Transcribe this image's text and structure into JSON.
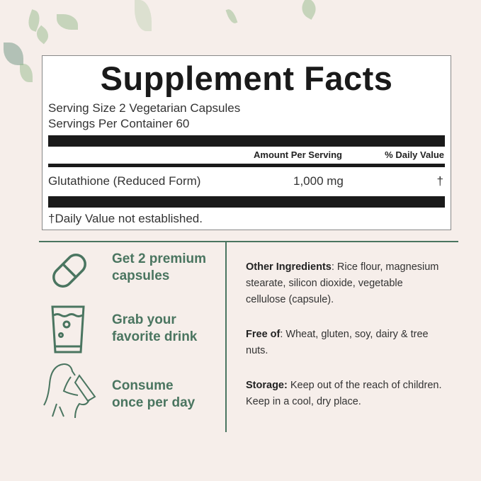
{
  "facts": {
    "title": "Supplement Facts",
    "serving_size": "Serving Size 2 Vegetarian Capsules",
    "servings_per_container": "Servings Per Container 60",
    "col_amount": "Amount Per Serving",
    "col_dv": "% Daily Value",
    "ingredient": {
      "name": "Glutathione (Reduced Form)",
      "amount": "1,000 mg",
      "dv": "†"
    },
    "footnote": "†Daily Value not established."
  },
  "steps": [
    {
      "icon": "capsule-icon",
      "line1": "Get 2 premium",
      "line2": "capsules"
    },
    {
      "icon": "glass-of-water-icon",
      "line1": "Grab your",
      "line2": "favorite drink"
    },
    {
      "icon": "woman-drinking-icon",
      "line1": "Consume",
      "line2": "once per day"
    }
  ],
  "info": [
    {
      "label": "Other Ingredients",
      "text": ": Rice flour, magnesium stearate, silicon dioxide, vegetable cellulose (capsule)."
    },
    {
      "label": "Free of",
      "text": ": Wheat, gluten, soy, dairy & tree nuts."
    },
    {
      "label": "Storage:",
      "text": " Keep out of the reach of children. Keep in a cool, dry place."
    }
  ],
  "colors": {
    "accent": "#4a7560",
    "background": "#f6eeea"
  }
}
